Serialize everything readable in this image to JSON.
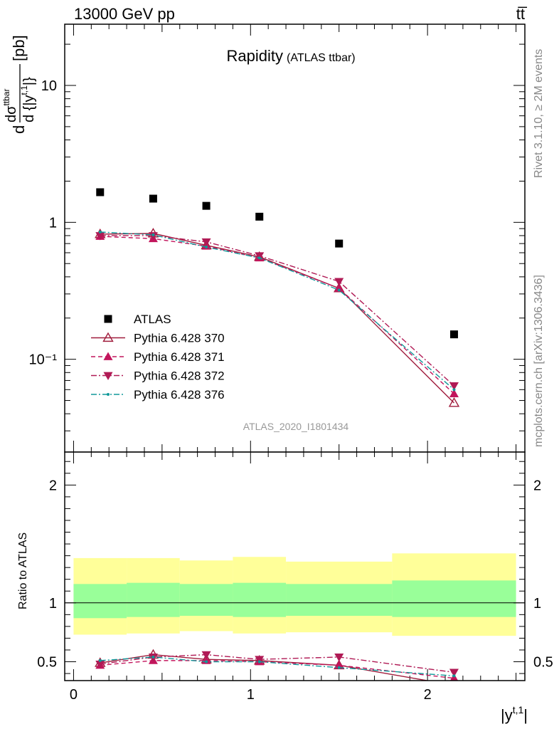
{
  "header": {
    "left": "13000 GeV pp",
    "right": "tt̅"
  },
  "side_labels": {
    "top": "Rivet 3.1.10, ≥ 2M events",
    "bottom": "mcplots.cern.ch [arXiv:1306.3436]"
  },
  "chart_data": [
    {
      "type": "scatter",
      "panel": "main",
      "title": "Rapidity",
      "subtitle": "(ATLAS ttbar)",
      "watermark": "ATLAS_2020_I1801434",
      "ylabel": "dσ/d{|y^{t,1}|} [pb]",
      "yscale": "log",
      "ylim": [
        0.021,
        28
      ],
      "xlim": [
        -0.05,
        2.55
      ],
      "ytick_labels": [
        "10⁻¹",
        "1",
        "10"
      ],
      "legend_position": "center-left",
      "bins": [
        [
          0,
          0.3
        ],
        [
          0.3,
          0.6
        ],
        [
          0.6,
          0.9
        ],
        [
          0.9,
          1.2
        ],
        [
          1.2,
          1.8
        ],
        [
          1.8,
          2.5
        ]
      ],
      "x": [
        0.15,
        0.45,
        0.75,
        1.05,
        1.5,
        2.15
      ],
      "series": [
        {
          "name": "ATLAS",
          "color": "#000000",
          "marker": "square",
          "style": "none",
          "values": [
            1.66,
            1.49,
            1.32,
            1.1,
            0.7,
            0.152
          ]
        },
        {
          "name": "Pythia 6.428 370",
          "color": "#a01c3c",
          "marker": "triangle-up-open",
          "style": "solid",
          "values": [
            0.82,
            0.83,
            0.68,
            0.56,
            0.33,
            0.048
          ]
        },
        {
          "name": "Pythia 6.428 371",
          "color": "#c2155c",
          "marker": "triangle-up",
          "style": "dashed",
          "values": [
            0.79,
            0.76,
            0.67,
            0.55,
            0.33,
            0.056
          ]
        },
        {
          "name": "Pythia 6.428 372",
          "color": "#b01a55",
          "marker": "triangle-down",
          "style": "dashdot",
          "values": [
            0.8,
            0.8,
            0.72,
            0.57,
            0.37,
            0.064
          ]
        },
        {
          "name": "Pythia 6.428 376",
          "color": "#10999a",
          "marker": "dot",
          "style": "dashdot",
          "values": [
            0.85,
            0.81,
            0.66,
            0.55,
            0.32,
            0.06
          ]
        }
      ]
    },
    {
      "type": "line",
      "panel": "ratio",
      "ylabel": "Ratio to ATLAS",
      "xlabel": "|y^{t,1}|",
      "ylim": [
        0.34,
        2.28
      ],
      "xlim": [
        -0.05,
        2.55
      ],
      "xtick_labels": [
        "0",
        "1",
        "2"
      ],
      "ytick_labels": [
        "0.5",
        "1",
        "2"
      ],
      "bands": [
        {
          "x0": 0,
          "x1": 0.3,
          "inner": [
            0.87,
            1.16
          ],
          "outer": [
            0.73,
            1.38
          ]
        },
        {
          "x0": 0.3,
          "x1": 0.6,
          "inner": [
            0.88,
            1.17
          ],
          "outer": [
            0.74,
            1.38
          ]
        },
        {
          "x0": 0.6,
          "x1": 0.9,
          "inner": [
            0.89,
            1.16
          ],
          "outer": [
            0.76,
            1.36
          ]
        },
        {
          "x0": 0.9,
          "x1": 1.2,
          "inner": [
            0.88,
            1.17
          ],
          "outer": [
            0.74,
            1.39
          ]
        },
        {
          "x0": 1.2,
          "x1": 1.8,
          "inner": [
            0.89,
            1.16
          ],
          "outer": [
            0.75,
            1.35
          ]
        },
        {
          "x0": 1.8,
          "x1": 2.5,
          "inner": [
            0.88,
            1.19
          ],
          "outer": [
            0.72,
            1.42
          ]
        }
      ],
      "x": [
        0.15,
        0.45,
        0.75,
        1.05,
        1.5,
        2.15
      ],
      "series": [
        {
          "name": "Pythia 6.428 370",
          "color": "#a01c3c",
          "marker": "triangle-up-open",
          "style": "solid",
          "values": [
            0.49,
            0.56,
            0.52,
            0.51,
            0.47,
            0.3
          ]
        },
        {
          "name": "Pythia 6.428 371",
          "color": "#c2155c",
          "marker": "triangle-up",
          "style": "dashed",
          "values": [
            0.47,
            0.51,
            0.51,
            0.5,
            0.47,
            0.36
          ]
        },
        {
          "name": "Pythia 6.428 372",
          "color": "#b01a55",
          "marker": "triangle-down",
          "style": "dashdot",
          "values": [
            0.48,
            0.54,
            0.56,
            0.52,
            0.54,
            0.41
          ]
        },
        {
          "name": "Pythia 6.428 376",
          "color": "#10999a",
          "marker": "dot",
          "style": "dashdot",
          "values": [
            0.51,
            0.54,
            0.5,
            0.5,
            0.45,
            0.38
          ]
        }
      ]
    }
  ]
}
